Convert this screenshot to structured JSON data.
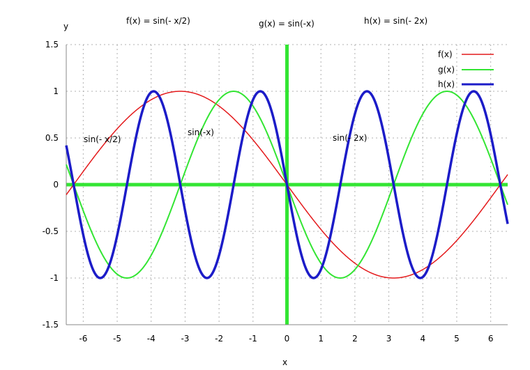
{
  "chart_data": {
    "type": "line",
    "title_left": "f(x) = sin(- x/2)",
    "title_center": "g(x) = sin(-x)",
    "title_right": "h(x) = sin(- 2x)",
    "xlabel": "x",
    "ylabel": "y",
    "xlim": [
      -6.5,
      6.5
    ],
    "ylim": [
      -1.5,
      1.5
    ],
    "x_ticks": [
      -6,
      -5,
      -4,
      -3,
      -2,
      -1,
      0,
      1,
      2,
      3,
      4,
      5,
      6
    ],
    "x_tick_labels": [
      "-6",
      "-5",
      "-4",
      "-3",
      "-2",
      "-1",
      "0",
      "1",
      "2",
      "3",
      "4",
      "5",
      "6"
    ],
    "y_ticks": [
      1.5,
      1,
      0.5,
      0,
      -0.5,
      -1,
      -1.5
    ],
    "y_tick_labels": [
      "1.5",
      "1",
      "0.5",
      "0",
      "-0.5",
      "-1",
      "-1.5"
    ],
    "grid": true,
    "legend_position": "top-right",
    "series": [
      {
        "name": "f(x)",
        "formula": "sin(-x/2)",
        "k": -0.5,
        "color": "#e41a1c"
      },
      {
        "name": "g(x)",
        "formula": "sin(-x)",
        "k": -1,
        "color": "#33e533"
      },
      {
        "name": "h(x)",
        "formula": "sin(-2x)",
        "k": -2,
        "color": "#1c1cc8"
      }
    ],
    "annotations": [
      {
        "text": "sin(- x/2)",
        "x": -5.9,
        "y": 0.5
      },
      {
        "text": "sin(-x)",
        "x": -2.9,
        "y": 0.55
      },
      {
        "text": "sin(- 2x)",
        "x": 1.35,
        "y": 0.5
      }
    ],
    "axis_color": "#33e533"
  }
}
